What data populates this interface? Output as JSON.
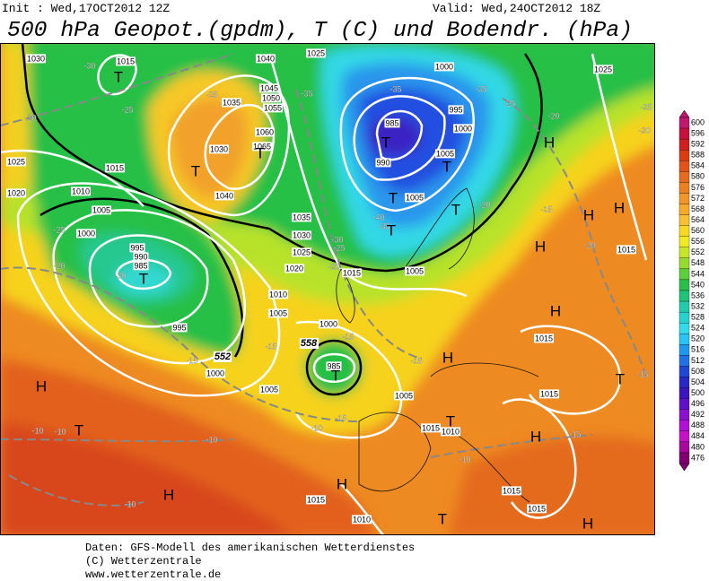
{
  "header": {
    "init": "Init : Wed,17OCT2012 12Z",
    "valid": "Valid: Wed,24OCT2012 18Z",
    "title": "500 hPa Geopot.(gpdm), T (C) und Bodendr. (hPa)"
  },
  "map": {
    "isobar_labels": [
      "1030",
      "1015",
      "1040",
      "1025",
      "1000",
      "1025",
      "1045",
      "1035",
      "1050",
      "1055",
      "1060",
      "1065",
      "1030",
      "1025",
      "1015",
      "985",
      "995",
      "1000",
      "990",
      "1005",
      "1010",
      "1020",
      "1040",
      "1005",
      "1035",
      "1005",
      "1000",
      "1030",
      "1025",
      "1020",
      "1015",
      "1005",
      "995",
      "990",
      "985",
      "1010",
      "1005",
      "995",
      "1000",
      "985",
      "1000",
      "1005",
      "1005",
      "1015",
      "1015",
      "1015",
      "1010",
      "1015",
      "1010",
      "1015",
      "1015",
      "1015"
    ],
    "height_labels": [
      "552",
      "558"
    ],
    "temperature_labels": [
      "-30",
      "-25",
      "-25",
      "-20",
      "-35",
      "-35",
      "-35",
      "-25",
      "-20",
      "-25",
      "-20",
      "-25",
      "-30",
      "-40",
      "-35",
      "-30",
      "-25",
      "-20",
      "-20",
      "-15",
      "-20",
      "-20",
      "-15",
      "-15",
      "-15",
      "-15",
      "-15",
      "-10",
      "-10",
      "-10",
      "-10",
      "-15",
      "-10",
      "-10",
      "-15"
    ],
    "centers": [
      "T",
      "T",
      "T",
      "T",
      "T",
      "T",
      "T",
      "T",
      "T",
      "T",
      "T",
      "T",
      "T",
      "T",
      "H",
      "H",
      "H",
      "H",
      "H",
      "H",
      "H",
      "H",
      "H",
      "H",
      "H"
    ]
  },
  "colorbar": {
    "levels": [
      600,
      596,
      592,
      588,
      584,
      580,
      576,
      572,
      568,
      564,
      560,
      556,
      552,
      548,
      544,
      540,
      536,
      532,
      528,
      524,
      520,
      516,
      512,
      508,
      504,
      500,
      496,
      492,
      488,
      484,
      480,
      476
    ],
    "colors": [
      "#c0186c",
      "#c8103c",
      "#d21e1e",
      "#dc3c14",
      "#e4521a",
      "#e86a1e",
      "#ee8020",
      "#f29628",
      "#f6aa2a",
      "#f8c030",
      "#f8d820",
      "#f0ea20",
      "#c8e628",
      "#96dc2c",
      "#5cd03a",
      "#28c048",
      "#20c478",
      "#20ccaa",
      "#28d2cc",
      "#30dcec",
      "#28c4f4",
      "#2098f0",
      "#2070e8",
      "#2048d8",
      "#2828c8",
      "#3c14c0",
      "#6010c8",
      "#8c10d0",
      "#b010d8",
      "#c810c8",
      "#a8089c",
      "#800070"
    ]
  },
  "footer": {
    "lines": [
      "Daten: GFS-Modell des amerikanischen Wetterdienstes",
      "(C) Wetterzentrale",
      "www.wetterzentrale.de"
    ]
  }
}
